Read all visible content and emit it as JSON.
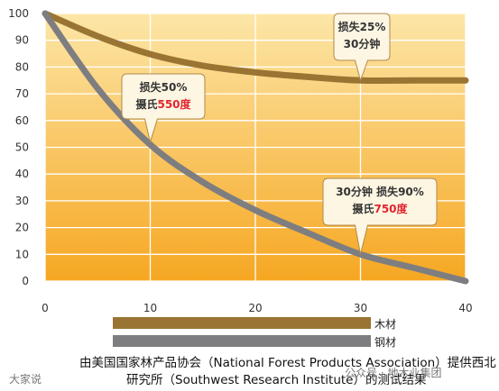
{
  "chart_data": {
    "type": "line",
    "x": [
      0,
      10,
      20,
      30,
      40
    ],
    "xlim": [
      0,
      40
    ],
    "ylim": [
      0,
      100
    ],
    "x_ticks": [
      0,
      10,
      20,
      30,
      40
    ],
    "y_ticks": [
      0,
      10,
      20,
      30,
      40,
      50,
      60,
      70,
      80,
      90,
      100
    ],
    "grid": true,
    "series": [
      {
        "name": "木材",
        "color": "#9a7433",
        "points": [
          [
            0,
            100
          ],
          [
            5,
            91.5
          ],
          [
            10,
            84.8
          ],
          [
            15,
            80.5
          ],
          [
            20,
            78
          ],
          [
            25,
            76.3
          ],
          [
            30,
            75
          ],
          [
            35,
            75
          ],
          [
            40,
            75
          ]
        ]
      },
      {
        "name": "钢材",
        "color": "#7e7e80",
        "points": [
          [
            0,
            100
          ],
          [
            5,
            72
          ],
          [
            10,
            51
          ],
          [
            15,
            37
          ],
          [
            20,
            26.5
          ],
          [
            25,
            18
          ],
          [
            30,
            10
          ],
          [
            35,
            5
          ],
          [
            40,
            0
          ]
        ]
      }
    ],
    "annotations": [
      {
        "lines": [
          [
            "损失25%",
            ""
          ],
          [
            "30分钟",
            ""
          ]
        ],
        "at": [
          30,
          75
        ]
      },
      {
        "lines": [
          [
            "损失50%",
            ""
          ],
          [
            "摄氏",
            "550度"
          ]
        ],
        "at": [
          10,
          52
        ]
      },
      {
        "lines": [
          [
            "30分钟 损失90%",
            ""
          ],
          [
            "摄氏",
            "750度"
          ]
        ],
        "at": [
          30,
          10
        ]
      }
    ],
    "background_gradient": [
      "#fce6a7",
      "#f6a722"
    ]
  },
  "legend": {
    "wood": "木材",
    "steel": "钢材"
  },
  "source_line1": "由美国国家林产品协会（National Forest Products Association）提供西北",
  "source_line2": "研究所（Southwest Research Institute）的测试结果",
  "watermark_left": "大家说",
  "watermark_right": "公众号 · 地木业集团"
}
